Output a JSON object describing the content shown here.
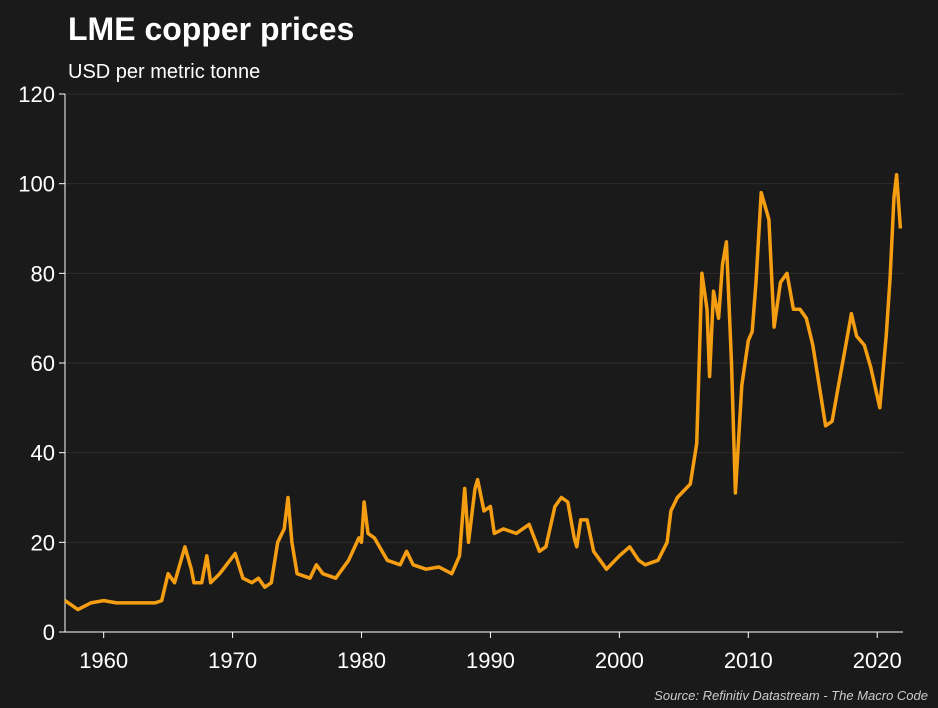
{
  "chart_data": {
    "type": "line",
    "title": "LME copper prices",
    "subtitle": "USD per metric tonne",
    "source": "Source: Refinitiv Datastream - The Macro Code",
    "color": "#f59e12",
    "grid": true,
    "xlim": [
      1957,
      2022
    ],
    "ylim": [
      0,
      120
    ],
    "xticks": [
      1960,
      1970,
      1980,
      1990,
      2000,
      2010,
      2020
    ],
    "yticks": [
      0,
      20,
      40,
      60,
      80,
      100,
      120
    ],
    "x": [
      1957,
      1958,
      1959,
      1960,
      1961,
      1962,
      1963,
      1964,
      1964.5,
      1965,
      1965.5,
      1966,
      1966.3,
      1966.8,
      1967,
      1967.6,
      1968,
      1968.3,
      1969,
      1969.8,
      1970.2,
      1970.8,
      1971.5,
      1972,
      1972.5,
      1973,
      1973.5,
      1974,
      1974.3,
      1974.6,
      1975,
      1976,
      1976.5,
      1977,
      1978,
      1979,
      1979.8,
      1980,
      1980.2,
      1980.5,
      1981,
      1982,
      1983,
      1983.5,
      1984,
      1985,
      1986,
      1987,
      1987.6,
      1988,
      1988.3,
      1988.8,
      1989,
      1989.5,
      1990,
      1990.3,
      1991,
      1992,
      1993,
      1993.8,
      1994.3,
      1995,
      1995.5,
      1996,
      1996.5,
      1996.7,
      1997,
      1997.5,
      1998,
      1999,
      2000,
      2000.8,
      2001.5,
      2002,
      2003,
      2003.7,
      2004,
      2004.5,
      2005.5,
      2006,
      2006.4,
      2006.8,
      2007,
      2007.3,
      2007.7,
      2008,
      2008.3,
      2008.7,
      2009,
      2009.5,
      2010,
      2010.3,
      2010.6,
      2011,
      2011.3,
      2011.6,
      2012,
      2012.5,
      2013,
      2013.5,
      2014,
      2014.5,
      2015,
      2015.5,
      2016,
      2016.5,
      2017,
      2017.5,
      2018,
      2018.4,
      2019,
      2019.5,
      2020.2,
      2020.7,
      2021,
      2021.3,
      2021.5,
      2021.8
    ],
    "values": [
      7,
      5,
      6.5,
      7,
      6.5,
      6.5,
      6.5,
      6.5,
      7,
      13,
      11,
      16,
      19,
      14,
      11,
      11,
      17,
      11,
      13,
      16,
      17.5,
      12,
      11,
      12,
      10,
      11,
      20,
      23,
      30,
      20,
      13,
      12,
      15,
      13,
      12,
      16,
      21,
      20,
      29,
      22,
      21,
      16,
      15,
      18,
      15,
      14,
      14.5,
      13,
      17,
      32,
      20,
      32,
      34,
      27,
      28,
      22,
      23,
      22,
      24,
      18,
      19,
      28,
      30,
      29,
      21,
      19,
      25,
      25,
      18,
      14,
      17,
      19,
      16,
      15,
      16,
      20,
      27,
      30,
      33,
      42,
      80,
      72,
      57,
      76,
      70,
      82,
      87,
      60,
      31,
      55,
      65,
      67,
      78,
      98,
      95,
      92,
      68,
      78,
      80,
      72,
      72,
      70,
      64,
      55,
      46,
      47,
      55,
      63,
      71,
      66,
      64,
      59,
      50,
      66,
      79,
      97,
      102,
      90
    ]
  }
}
